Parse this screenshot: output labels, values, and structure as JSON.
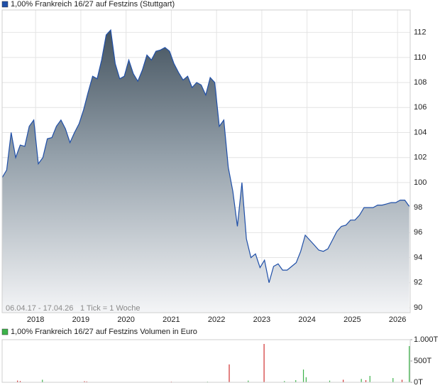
{
  "chart_data": [
    {
      "type": "area",
      "series": [
        {
          "name": "1,00% Frankreich 16/27 auf Festzins (Stuttgart)",
          "color": "#1f4fa8",
          "x": [
            2017.26,
            2017.36,
            2017.46,
            2017.56,
            2017.66,
            2017.76,
            2017.86,
            2017.96,
            2018.06,
            2018.16,
            2018.26,
            2018.36,
            2018.46,
            2018.56,
            2018.66,
            2018.76,
            2018.86,
            2018.96,
            2019.06,
            2019.16,
            2019.26,
            2019.36,
            2019.46,
            2019.56,
            2019.66,
            2019.76,
            2019.86,
            2019.96,
            2020.06,
            2020.16,
            2020.26,
            2020.36,
            2020.46,
            2020.56,
            2020.66,
            2020.76,
            2020.86,
            2020.96,
            2021.06,
            2021.16,
            2021.26,
            2021.36,
            2021.46,
            2021.56,
            2021.66,
            2021.76,
            2021.86,
            2021.96,
            2022.06,
            2022.16,
            2022.26,
            2022.36,
            2022.46,
            2022.56,
            2022.66,
            2022.76,
            2022.86,
            2022.96,
            2023.06,
            2023.16,
            2023.26,
            2023.36,
            2023.46,
            2023.56,
            2023.66,
            2023.76,
            2023.86,
            2023.96,
            2024.06,
            2024.16,
            2024.26,
            2024.36,
            2024.46,
            2024.56,
            2024.66,
            2024.76,
            2024.86,
            2024.96,
            2025.06,
            2025.16,
            2025.26,
            2025.36,
            2025.46,
            2025.56,
            2025.66,
            2025.76,
            2025.86,
            2025.96,
            2026.06,
            2026.16,
            2026.26
          ],
          "values": [
            100.4,
            101,
            104,
            102,
            103,
            102.9,
            104.5,
            105,
            101.5,
            102,
            103.5,
            103.6,
            104.5,
            105,
            104.3,
            103.2,
            104,
            104.7,
            105.8,
            107.2,
            108.5,
            108.3,
            109.8,
            111.8,
            112.2,
            109.5,
            108.3,
            108.5,
            109.8,
            108.7,
            108.1,
            109,
            110.2,
            109.8,
            110.5,
            110.6,
            110.8,
            110.5,
            109.5,
            108.8,
            108.2,
            108.5,
            107.6,
            108,
            107.8,
            107,
            108.4,
            108,
            104.5,
            105,
            101.2,
            99.3,
            96.5,
            100,
            95.5,
            94,
            94.3,
            93.2,
            93.8,
            92,
            93.3,
            93.5,
            93,
            93,
            93.3,
            93.6,
            94.5,
            95.8,
            95.4,
            95,
            94.6,
            94.5,
            94.7,
            95.4,
            96.1,
            96.5,
            96.6,
            97,
            97,
            97.4,
            98,
            98,
            98,
            98.2,
            98.2,
            98.3,
            98.4,
            98.4,
            98.6,
            98.6,
            98.1
          ]
        }
      ],
      "xlim": [
        2017.26,
        2026.28
      ],
      "xticks": [
        2018,
        2019,
        2020,
        2021,
        2022,
        2023,
        2024,
        2025,
        2026
      ],
      "ylim": [
        89.6,
        113.8
      ],
      "yticks": [
        90,
        92,
        94,
        96,
        98,
        100,
        102,
        104,
        106,
        108,
        110,
        112
      ],
      "grid": true,
      "annotations": [
        "06.04.17 - 17.04.26",
        "1 Tick = 1 Woche"
      ]
    },
    {
      "type": "bar",
      "series": [
        {
          "name": "1,00% Frankreich 16/27 auf Festzins Volumen in Euro",
          "color": "#3cb34a",
          "x": [
            2017.6,
            2017.66,
            2018.15,
            2019.08,
            2019.13,
            2021.0,
            2021.8,
            2022.28,
            2022.7,
            2023.05,
            2023.5,
            2023.75,
            2023.92,
            2023.98,
            2024.5,
            2024.8,
            2025.2,
            2025.3,
            2025.39,
            2025.9,
            2026.1,
            2026.26
          ],
          "values": [
            40,
            30,
            60,
            25,
            20,
            15,
            15,
            420,
            40,
            900,
            30,
            50,
            300,
            120,
            40,
            60,
            80,
            50,
            150,
            100,
            60,
            850
          ],
          "colors": [
            "#d03030",
            "#d03030",
            "#3cb34a",
            "#d03030",
            "#d03030",
            "#d03030",
            "#3cb34a",
            "#d03030",
            "#3cb34a",
            "#d03030",
            "#3cb34a",
            "#3cb34a",
            "#3cb34a",
            "#3cb34a",
            "#3cb34a",
            "#d03030",
            "#3cb34a",
            "#d03030",
            "#3cb34a",
            "#3cb34a",
            "#d03030",
            "#3cb34a"
          ]
        }
      ],
      "xlim": [
        2017.26,
        2026.28
      ],
      "ylim": [
        0,
        1000
      ],
      "yticks": [
        {
          "value": 0,
          "label": "0T"
        },
        {
          "value": 500,
          "label": "500T"
        },
        {
          "value": 1000,
          "label": "1.000T"
        }
      ]
    }
  ]
}
